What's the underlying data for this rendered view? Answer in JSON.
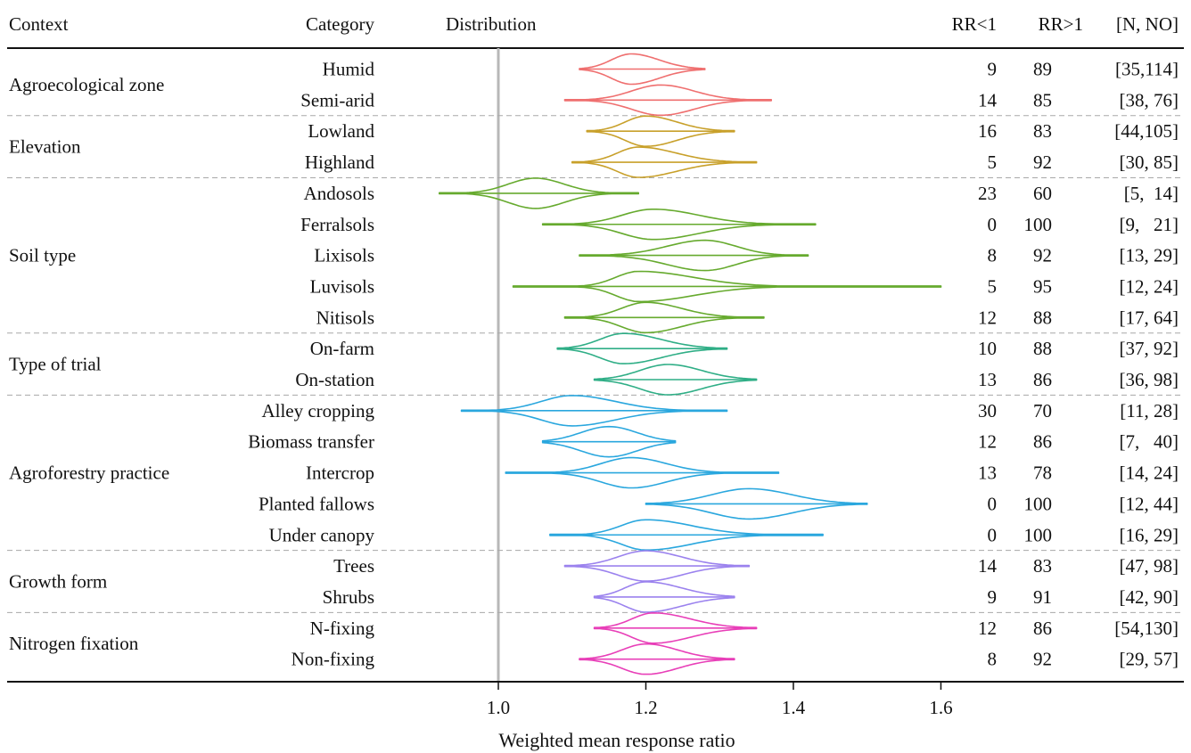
{
  "chart_data": {
    "type": "violin",
    "headers": {
      "context": "Context",
      "category": "Category",
      "distribution": "Distribution",
      "rr_lt1": "RR<1",
      "rr_gt1": "RR>1",
      "n_no": "[N, NO]"
    },
    "xlabel": "Weighted mean response ratio",
    "xlim": [
      0.89,
      1.62
    ],
    "xticks": [
      1.0,
      1.2,
      1.4,
      1.6
    ],
    "xtick_labels": [
      "1.0",
      "1.2",
      "1.4",
      "1.6"
    ],
    "reference_line": 1.0,
    "groups": [
      {
        "context": "Agroecological zone",
        "color": "#ef6f6f",
        "rows": [
          {
            "category": "Humid",
            "min": 1.11,
            "max": 1.28,
            "median": 1.18,
            "mode_width": 0.38,
            "rr_lt1": "9",
            "rr_gt1": "89",
            "n_no": "[35,114]"
          },
          {
            "category": "Semi-arid",
            "min": 1.09,
            "max": 1.37,
            "median": 1.22,
            "mode_width": 0.3,
            "rr_lt1": "14",
            "rr_gt1": "85",
            "n_no": "[38, 76]"
          }
        ]
      },
      {
        "context": "Elevation",
        "color": "#c8a02a",
        "rows": [
          {
            "category": "Lowland",
            "min": 1.12,
            "max": 1.32,
            "median": 1.2,
            "mode_width": 0.35,
            "rr_lt1": "16",
            "rr_gt1": "83",
            "n_no": "[44,105]"
          },
          {
            "category": "Highland",
            "min": 1.1,
            "max": 1.35,
            "median": 1.19,
            "mode_width": 0.32,
            "rr_lt1": "5",
            "rr_gt1": "92",
            "n_no": "[30, 85]"
          }
        ]
      },
      {
        "context": "Soil type",
        "color": "#66aa2e",
        "rows": [
          {
            "category": "Andosols",
            "min": 0.92,
            "max": 1.19,
            "median": 1.05,
            "mode_width": 0.28,
            "rr_lt1": "23",
            "rr_gt1": "60",
            "n_no": "[5,  14]"
          },
          {
            "category": "Ferralsols",
            "min": 1.06,
            "max": 1.43,
            "median": 1.21,
            "mode_width": 0.28,
            "rr_lt1": "0",
            "rr_gt1": "100",
            "n_no": "[9,   21]"
          },
          {
            "category": "Lixisols",
            "min": 1.11,
            "max": 1.42,
            "median": 1.28,
            "mode_width": 0.3,
            "rr_lt1": "8",
            "rr_gt1": "92",
            "n_no": "[13, 29]"
          },
          {
            "category": "Luvisols",
            "min": 1.02,
            "max": 1.6,
            "median": 1.19,
            "mode_width": 0.18,
            "rr_lt1": "5",
            "rr_gt1": "95",
            "n_no": "[12, 24]"
          },
          {
            "category": "Nitisols",
            "min": 1.09,
            "max": 1.36,
            "median": 1.2,
            "mode_width": 0.3,
            "rr_lt1": "12",
            "rr_gt1": "88",
            "n_no": "[17, 64]"
          }
        ]
      },
      {
        "context": "Type of trial",
        "color": "#2fae86",
        "rows": [
          {
            "category": "On-farm",
            "min": 1.08,
            "max": 1.31,
            "median": 1.17,
            "mode_width": 0.36,
            "rr_lt1": "10",
            "rr_gt1": "88",
            "n_no": "[37, 92]"
          },
          {
            "category": "On-station",
            "min": 1.13,
            "max": 1.35,
            "median": 1.23,
            "mode_width": 0.38,
            "rr_lt1": "13",
            "rr_gt1": "86",
            "n_no": "[36, 98]"
          }
        ]
      },
      {
        "context": "Agroforestry practice",
        "color": "#2aa7de",
        "rows": [
          {
            "category": "Alley cropping",
            "min": 0.95,
            "max": 1.31,
            "median": 1.1,
            "mode_width": 0.28,
            "rr_lt1": "30",
            "rr_gt1": "70",
            "n_no": "[11, 28]"
          },
          {
            "category": "Biomass transfer",
            "min": 1.06,
            "max": 1.24,
            "median": 1.15,
            "mode_width": 0.42,
            "rr_lt1": "12",
            "rr_gt1": "86",
            "n_no": "[7,   40]"
          },
          {
            "category": "Intercrop",
            "min": 1.01,
            "max": 1.38,
            "median": 1.18,
            "mode_width": 0.24,
            "rr_lt1": "13",
            "rr_gt1": "78",
            "n_no": "[14, 24]"
          },
          {
            "category": "Planted fallows",
            "min": 1.2,
            "max": 1.5,
            "median": 1.34,
            "mode_width": 0.36,
            "rr_lt1": "0",
            "rr_gt1": "100",
            "n_no": "[12, 44]"
          },
          {
            "category": "Under canopy",
            "min": 1.07,
            "max": 1.44,
            "median": 1.2,
            "mode_width": 0.26,
            "rr_lt1": "0",
            "rr_gt1": "100",
            "n_no": "[16, 29]"
          }
        ]
      },
      {
        "context": "Growth form",
        "color": "#9b82ee",
        "rows": [
          {
            "category": "Trees",
            "min": 1.09,
            "max": 1.34,
            "median": 1.2,
            "mode_width": 0.34,
            "rr_lt1": "14",
            "rr_gt1": "83",
            "n_no": "[47, 98]"
          },
          {
            "category": "Shrubs",
            "min": 1.13,
            "max": 1.32,
            "median": 1.2,
            "mode_width": 0.4,
            "rr_lt1": "9",
            "rr_gt1": "91",
            "n_no": "[42, 90]"
          }
        ]
      },
      {
        "context": "Nitrogen fixation",
        "color": "#e83fb8",
        "rows": [
          {
            "category": "N-fixing",
            "min": 1.13,
            "max": 1.35,
            "median": 1.21,
            "mode_width": 0.36,
            "rr_lt1": "12",
            "rr_gt1": "86",
            "n_no": "[54,130]"
          },
          {
            "category": "Non-fixing",
            "min": 1.11,
            "max": 1.32,
            "median": 1.2,
            "mode_width": 0.36,
            "rr_lt1": "8",
            "rr_gt1": "92",
            "n_no": "[29, 57]"
          }
        ]
      }
    ]
  }
}
